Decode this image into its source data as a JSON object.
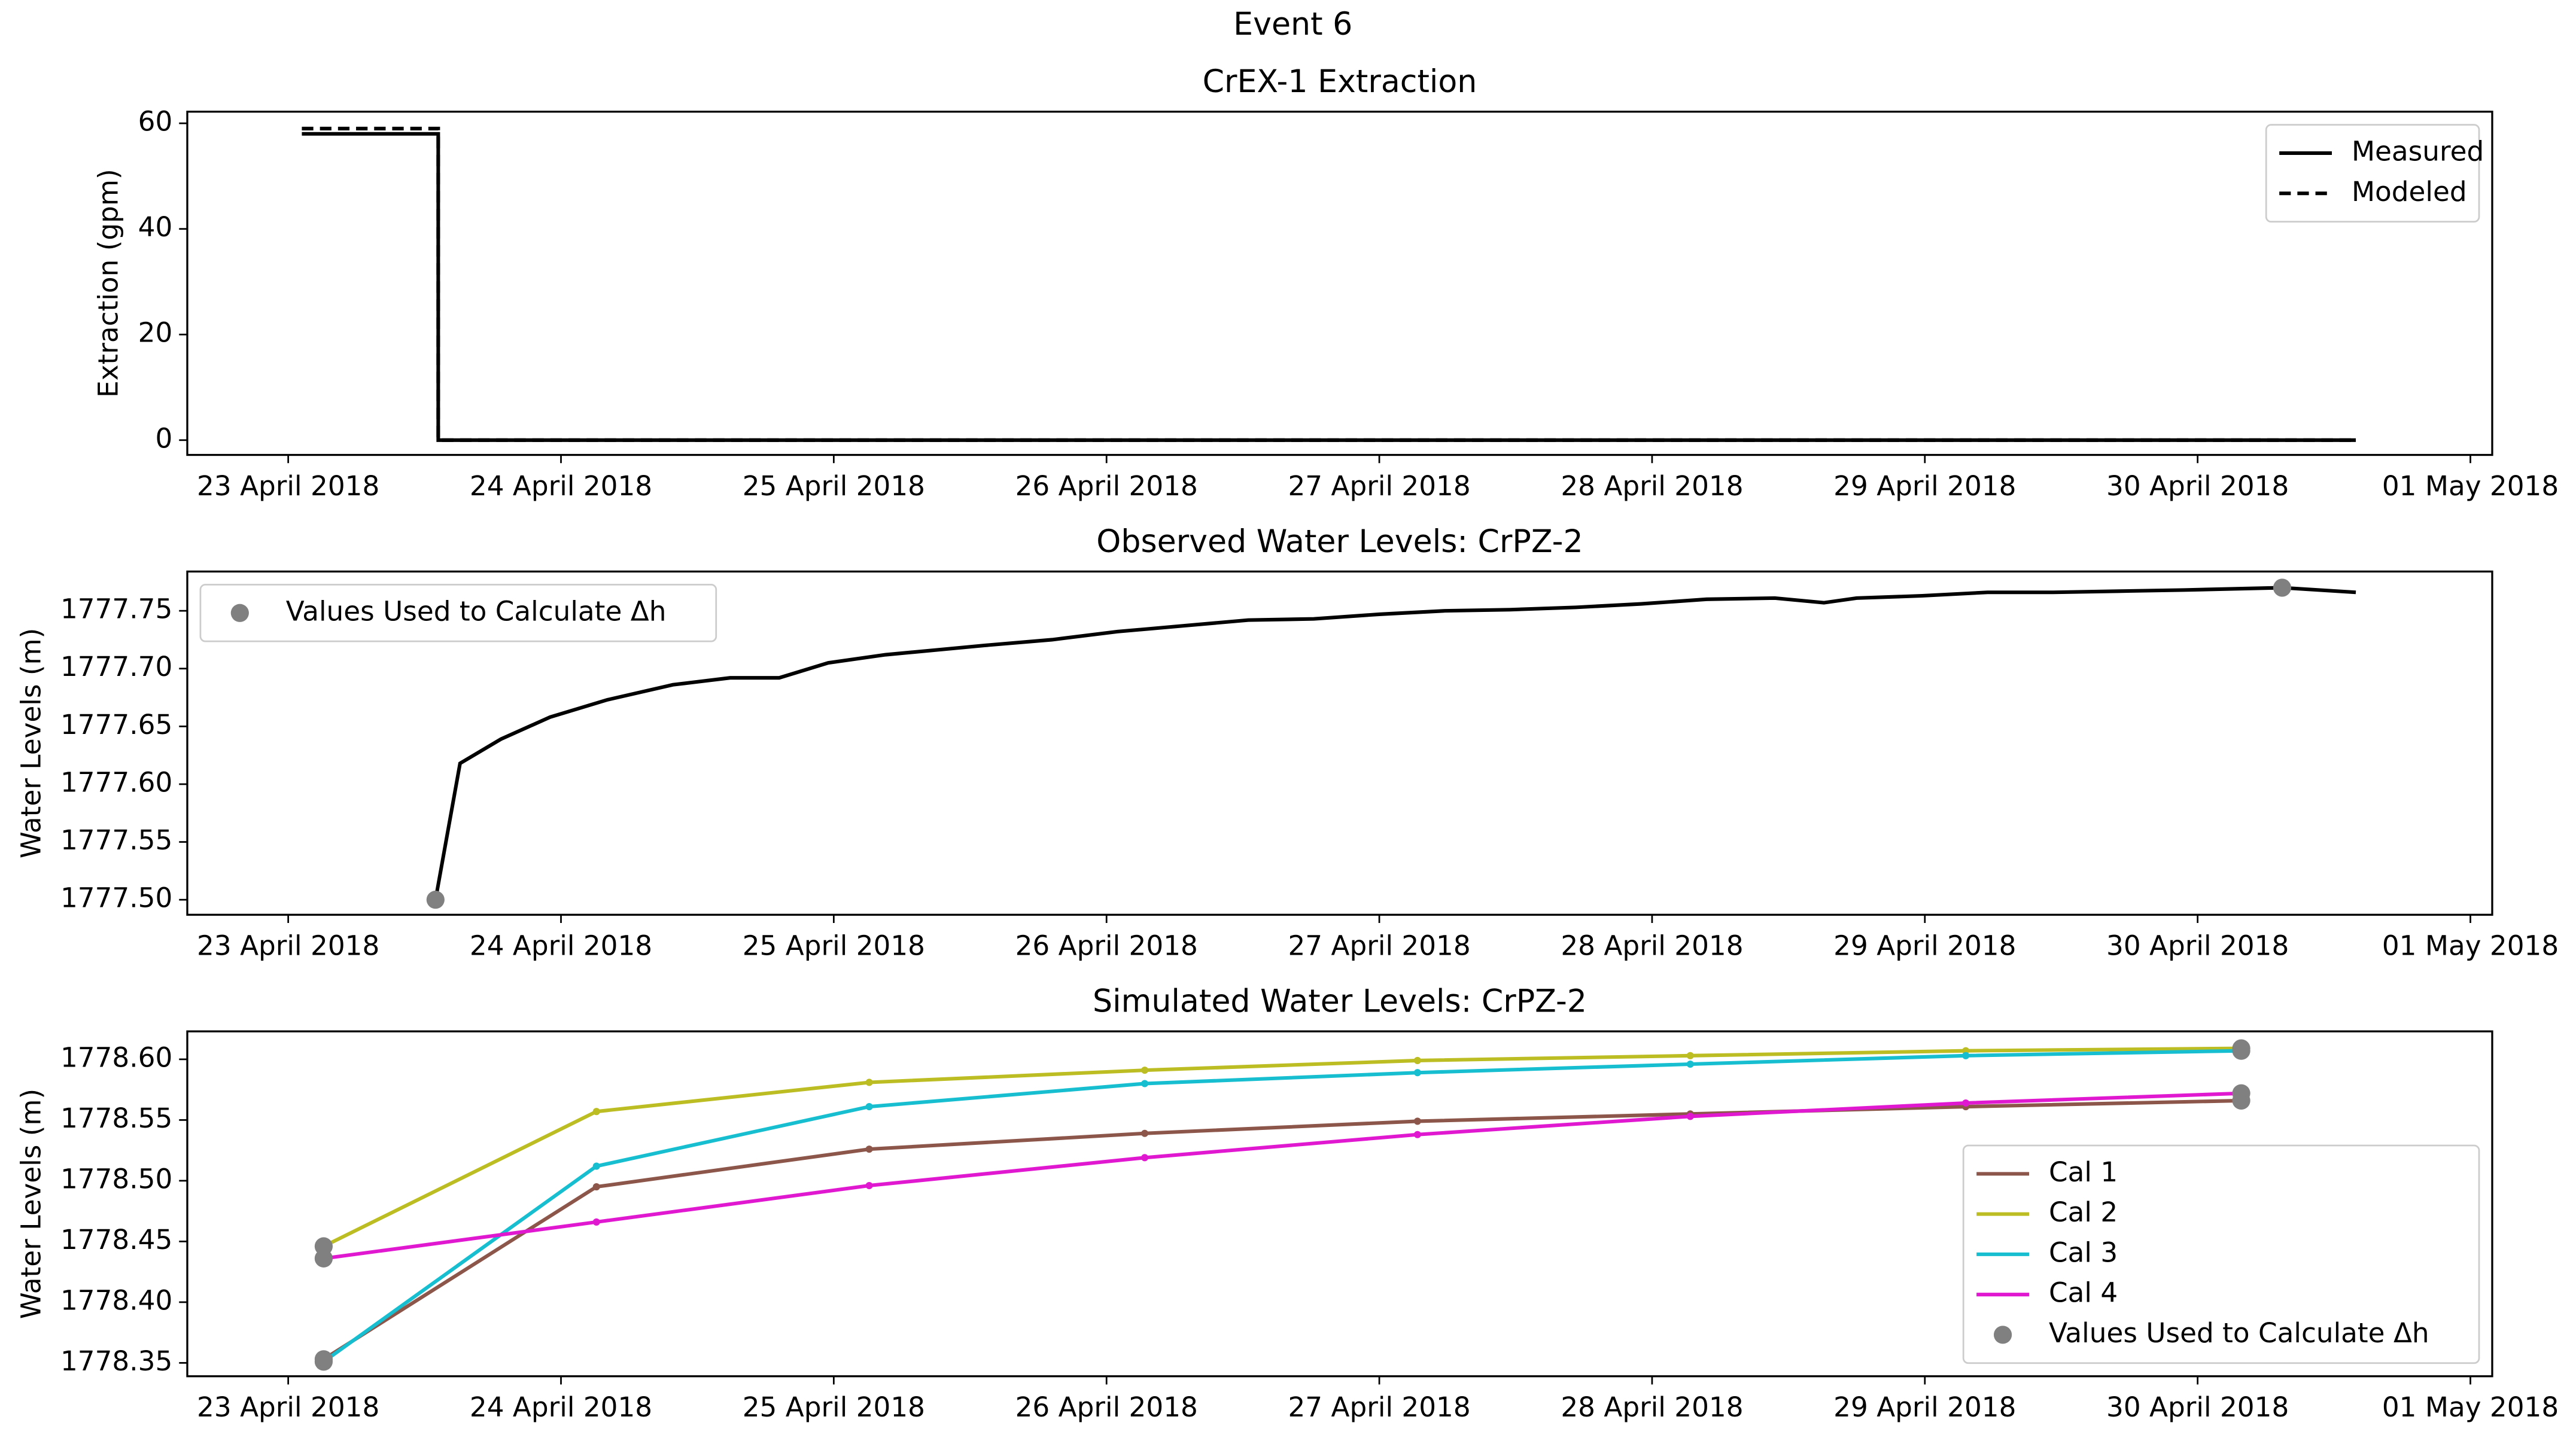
{
  "title": "Event 6",
  "chart_data": [
    {
      "type": "line",
      "title": "CrEX-1 Extraction",
      "ylabel": "Extraction (gpm)",
      "xlim": [
        22.63,
        31.08
      ],
      "xticks": [
        {
          "value": 23,
          "label": "23 April 2018"
        },
        {
          "value": 24,
          "label": "24 April 2018"
        },
        {
          "value": 25,
          "label": "25 April 2018"
        },
        {
          "value": 26,
          "label": "26 April 2018"
        },
        {
          "value": 27,
          "label": "27 April 2018"
        },
        {
          "value": 28,
          "label": "28 April 2018"
        },
        {
          "value": 29,
          "label": "29 April 2018"
        },
        {
          "value": 30,
          "label": "30 April 2018"
        },
        {
          "value": 31,
          "label": "01 May 2018"
        }
      ],
      "ylim": [
        -2.8,
        62.2
      ],
      "yticks": [
        0,
        20,
        40,
        60
      ],
      "legend": "upper right",
      "series": [
        {
          "name": "Measured",
          "color": "#000000",
          "style": "solid",
          "x": [
            23.05,
            23.55,
            23.55,
            30.58
          ],
          "values": [
            58,
            58,
            0,
            0
          ]
        },
        {
          "name": "Modeled",
          "color": "#000000",
          "style": "dashed",
          "x": [
            23.05,
            23.55,
            23.55,
            30.58
          ],
          "values": [
            59,
            59,
            0,
            0
          ]
        }
      ]
    },
    {
      "type": "line",
      "title": "Observed Water Levels: CrPZ-2",
      "ylabel": "Water Levels (m)",
      "xlim": [
        22.63,
        31.08
      ],
      "xticks": [
        {
          "value": 23,
          "label": "23 April 2018"
        },
        {
          "value": 24,
          "label": "24 April 2018"
        },
        {
          "value": 25,
          "label": "25 April 2018"
        },
        {
          "value": 26,
          "label": "26 April 2018"
        },
        {
          "value": 27,
          "label": "27 April 2018"
        },
        {
          "value": 28,
          "label": "28 April 2018"
        },
        {
          "value": 29,
          "label": "29 April 2018"
        },
        {
          "value": 30,
          "label": "30 April 2018"
        },
        {
          "value": 31,
          "label": "01 May 2018"
        }
      ],
      "ylim": [
        1777.487,
        1777.784
      ],
      "yticks": [
        {
          "value": 1777.5,
          "label": "1777.50"
        },
        {
          "value": 1777.55,
          "label": "1777.55"
        },
        {
          "value": 1777.6,
          "label": "1777.60"
        },
        {
          "value": 1777.65,
          "label": "1777.65"
        },
        {
          "value": 1777.7,
          "label": "1777.70"
        },
        {
          "value": 1777.75,
          "label": "1777.75"
        }
      ],
      "legend": "upper left",
      "series": [
        {
          "color": "#000000",
          "style": "solid",
          "x": [
            23.54,
            23.63,
            23.78,
            23.96,
            24.17,
            24.41,
            24.62,
            24.8,
            24.98,
            25.19,
            25.37,
            25.55,
            25.8,
            26.04,
            26.28,
            26.52,
            26.76,
            27.0,
            27.24,
            27.48,
            27.72,
            27.96,
            28.2,
            28.45,
            28.63,
            28.75,
            28.99,
            29.23,
            29.47,
            29.71,
            29.95,
            30.31,
            30.58
          ],
          "values": [
            1777.5,
            1777.618,
            1777.639,
            1777.658,
            1777.673,
            1777.686,
            1777.692,
            1777.692,
            1777.705,
            1777.712,
            1777.716,
            1777.72,
            1777.725,
            1777.732,
            1777.737,
            1777.742,
            1777.743,
            1777.747,
            1777.75,
            1777.751,
            1777.753,
            1777.756,
            1777.76,
            1777.761,
            1777.757,
            1777.761,
            1777.763,
            1777.766,
            1777.766,
            1777.767,
            1777.768,
            1777.77,
            1777.766
          ]
        },
        {
          "name": "Values Used to Calculate Δh",
          "color": "#808080",
          "style": "scatter",
          "x": [
            23.54,
            30.31
          ],
          "values": [
            1777.5,
            1777.77
          ]
        }
      ]
    },
    {
      "type": "line",
      "title": "Simulated Water Levels: CrPZ-2",
      "ylabel": "Water Levels (m)",
      "xlim": [
        22.63,
        31.08
      ],
      "xticks": [
        {
          "value": 23,
          "label": "23 April 2018"
        },
        {
          "value": 24,
          "label": "24 April 2018"
        },
        {
          "value": 25,
          "label": "25 April 2018"
        },
        {
          "value": 26,
          "label": "26 April 2018"
        },
        {
          "value": 27,
          "label": "27 April 2018"
        },
        {
          "value": 28,
          "label": "28 April 2018"
        },
        {
          "value": 29,
          "label": "29 April 2018"
        },
        {
          "value": 30,
          "label": "30 April 2018"
        },
        {
          "value": 31,
          "label": "01 May 2018"
        }
      ],
      "ylim": [
        1778.339,
        1778.623
      ],
      "yticks": [
        {
          "value": 1778.35,
          "label": "1778.35"
        },
        {
          "value": 1778.4,
          "label": "1778.40"
        },
        {
          "value": 1778.45,
          "label": "1778.45"
        },
        {
          "value": 1778.5,
          "label": "1778.50"
        },
        {
          "value": 1778.55,
          "label": "1778.55"
        },
        {
          "value": 1778.6,
          "label": "1778.60"
        }
      ],
      "legend": "lower right",
      "series": [
        {
          "name": "Cal 1",
          "color": "#8c564b",
          "style": "marker",
          "x": [
            23.13,
            24.13,
            25.13,
            26.14,
            27.14,
            28.14,
            29.15,
            30.16
          ],
          "values": [
            1778.353,
            1778.495,
            1778.526,
            1778.539,
            1778.549,
            1778.555,
            1778.561,
            1778.566
          ]
        },
        {
          "name": "Cal 2",
          "color": "#bcbd22",
          "style": "marker",
          "x": [
            23.13,
            24.13,
            25.13,
            26.14,
            27.14,
            28.14,
            29.15,
            30.16
          ],
          "values": [
            1778.446,
            1778.557,
            1778.581,
            1778.591,
            1778.599,
            1778.603,
            1778.607,
            1778.609
          ]
        },
        {
          "name": "Cal 3",
          "color": "#17becf",
          "style": "marker",
          "x": [
            23.13,
            24.13,
            25.13,
            26.14,
            27.14,
            28.14,
            29.15,
            30.16
          ],
          "values": [
            1778.351,
            1778.512,
            1778.561,
            1778.58,
            1778.589,
            1778.596,
            1778.603,
            1778.607
          ]
        },
        {
          "name": "Cal 4",
          "color": "#e019d0",
          "style": "marker",
          "x": [
            23.13,
            24.13,
            25.13,
            26.14,
            27.14,
            28.14,
            29.15,
            30.16
          ],
          "values": [
            1778.436,
            1778.466,
            1778.496,
            1778.519,
            1778.538,
            1778.553,
            1778.564,
            1778.572
          ]
        },
        {
          "name": "Values Used to Calculate Δh",
          "color": "#808080",
          "style": "scatter",
          "x": [
            23.13,
            23.13,
            23.13,
            23.13,
            30.16,
            30.16,
            30.16,
            30.16
          ],
          "values": [
            1778.353,
            1778.446,
            1778.351,
            1778.436,
            1778.566,
            1778.609,
            1778.607,
            1778.572
          ]
        }
      ]
    }
  ]
}
